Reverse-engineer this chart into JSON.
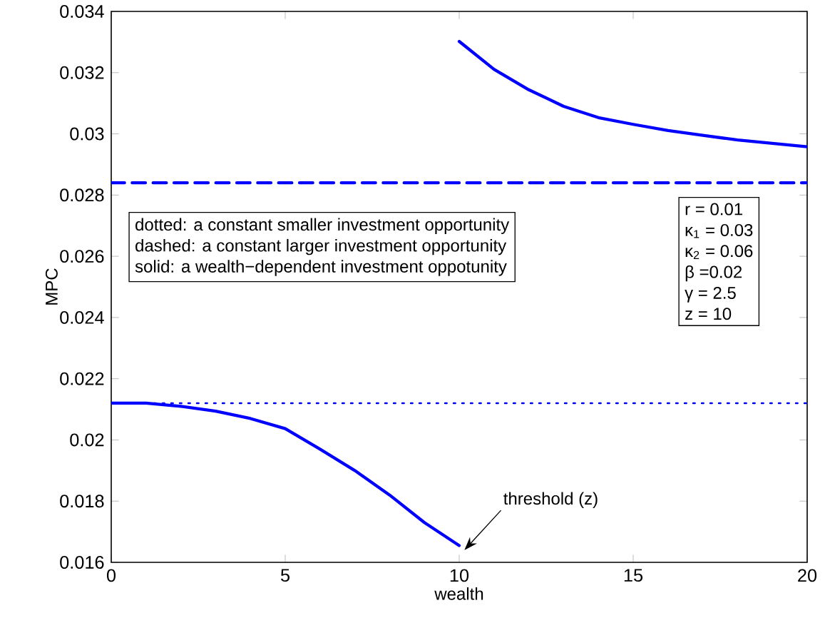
{
  "chart_data": {
    "type": "line",
    "xlabel": "wealth",
    "ylabel": "MPC",
    "xlim": [
      0,
      20
    ],
    "ylim": [
      0.016,
      0.034
    ],
    "xticks": [
      0,
      5,
      10,
      15,
      20
    ],
    "yticks": [
      0.016,
      0.018,
      0.02,
      0.022,
      0.024,
      0.026,
      0.028,
      0.03,
      0.032,
      0.034
    ],
    "grid": false,
    "marker": "none",
    "series": [
      {
        "color": "#0000ff",
        "line_style": "dotted",
        "x": [
          0,
          20
        ],
        "values": [
          0.0212,
          0.0212
        ]
      },
      {
        "color": "#0000ff",
        "line_style": "dashed",
        "x": [
          0,
          20
        ],
        "values": [
          0.0284,
          0.0284
        ]
      },
      {
        "color": "#0000ff",
        "line_style": "solid",
        "x": [
          0,
          1,
          2,
          3,
          4,
          5,
          6,
          7,
          8,
          9,
          10
        ],
        "values": [
          0.0212,
          0.0212,
          0.0211,
          0.02094,
          0.0207,
          0.02037,
          0.0197,
          0.019,
          0.0182,
          0.0173,
          0.01655
        ]
      },
      {
        "color": "#0000ff",
        "line_style": "solid",
        "x": [
          10,
          11,
          12,
          13,
          14,
          15,
          16,
          17,
          18,
          19,
          20
        ],
        "values": [
          0.03302,
          0.03211,
          0.03144,
          0.0309,
          0.03053,
          0.03031,
          0.03011,
          0.02995,
          0.0298,
          0.02969,
          0.02958
        ]
      }
    ],
    "annotations": [
      "dotted: a constant smaller investment opportunity",
      "dashed: a constant larger investment opportunity",
      "solid: a wealth−dependent investment oppotunity",
      "r = 0.01",
      "κ$_{1}$ = 0.03",
      "κ$_{2}$ = 0.06",
      "β =0.02",
      "γ = 2.5",
      "z = 10",
      {
        "text": "threshold (z)",
        "x": 10,
        "y": 0.0166
      }
    ]
  }
}
